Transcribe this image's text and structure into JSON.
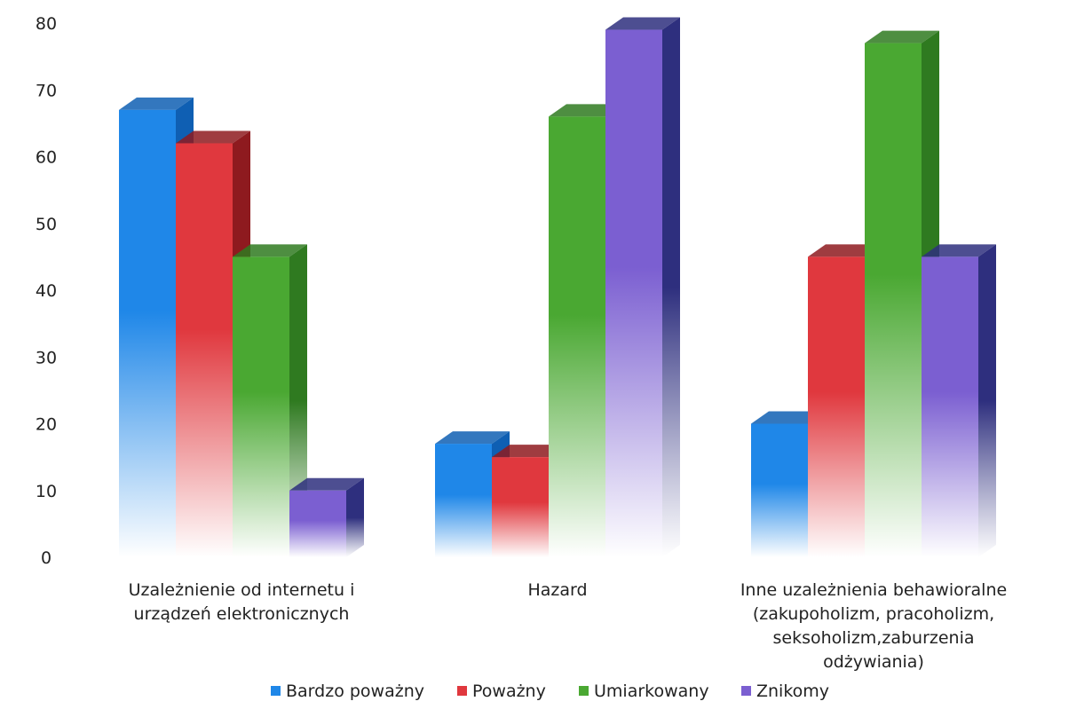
{
  "chart_data": {
    "type": "bar",
    "style": "3d-clustered-column-gradient",
    "categories": [
      [
        "Uzależnienie od internetu i",
        "urządzeń elektronicznych"
      ],
      [
        "Hazard"
      ],
      [
        "Inne uzależnienia behawioralne",
        "(zakupoholizm, pracoholizm,",
        "seksoholizm,zaburzenia",
        "odżywiania)"
      ]
    ],
    "series": [
      {
        "name": "Bardzo poważny",
        "color": "#1f87e8",
        "dark": "#0f5fb3",
        "values": [
          67,
          17,
          20
        ]
      },
      {
        "name": "Poważny",
        "color": "#e0383e",
        "dark": "#8e1a1f",
        "values": [
          62,
          15,
          45
        ]
      },
      {
        "name": "Umiarkowany",
        "color": "#4aa832",
        "dark": "#2f7a20",
        "values": [
          45,
          66,
          77
        ]
      },
      {
        "name": "Znikomy",
        "color": "#7b5fd1",
        "dark": "#2e2f7e",
        "values": [
          10,
          79,
          45
        ]
      }
    ],
    "ylim": [
      0,
      80
    ],
    "yticks": [
      0,
      10,
      20,
      30,
      40,
      50,
      60,
      70,
      80
    ],
    "grid": false,
    "legend_position": "bottom"
  }
}
